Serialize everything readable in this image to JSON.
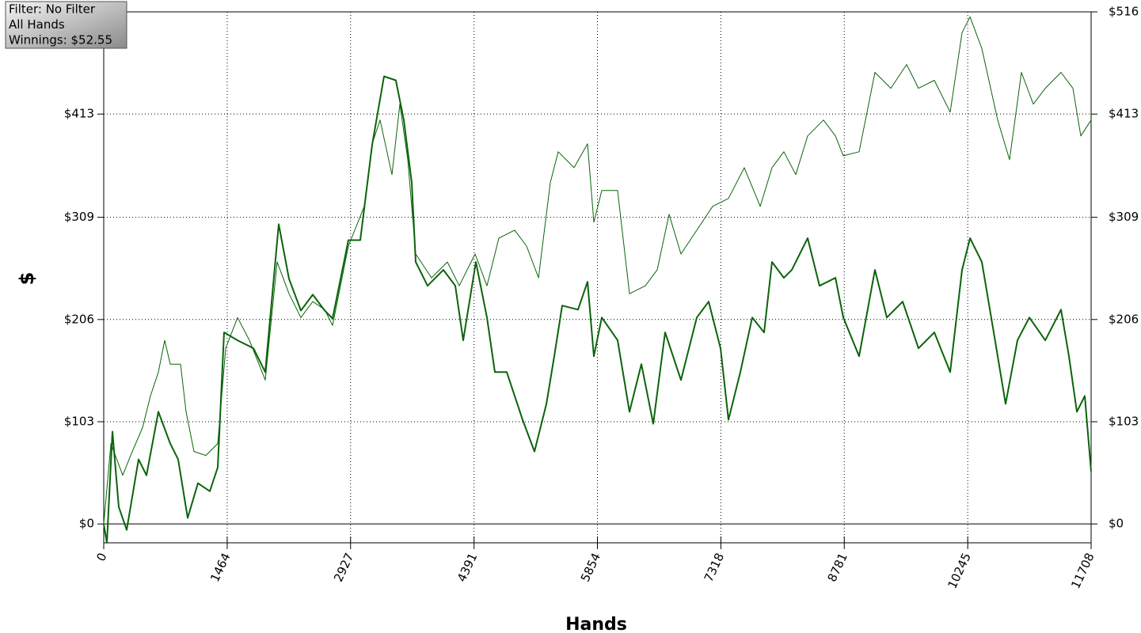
{
  "chart_data": {
    "type": "line",
    "xlabel": "Hands",
    "ylabel": "$",
    "annotations": [
      "Filter: No Filter",
      "All Hands",
      "Winnings: $52.55"
    ],
    "xlim": [
      0,
      11708
    ],
    "xticks": [
      0,
      1464,
      2927,
      4391,
      5854,
      7318,
      8781,
      10245,
      11708
    ],
    "ylim": [
      -19,
      516
    ],
    "yticks": [
      {
        "value": 0,
        "label": "$0"
      },
      {
        "value": 103,
        "label": "$103"
      },
      {
        "value": 206,
        "label": "$206"
      },
      {
        "value": 309,
        "label": "$309"
      },
      {
        "value": 413,
        "label": "$413"
      },
      {
        "value": 516,
        "label": "$516"
      }
    ],
    "y2lim": [
      -19,
      516
    ],
    "y2ticks": [
      {
        "value": 0,
        "label": "$0"
      },
      {
        "value": 103,
        "label": "$103"
      },
      {
        "value": 206,
        "label": "$206"
      },
      {
        "value": 309,
        "label": "$309"
      },
      {
        "value": 413,
        "label": "$413"
      },
      {
        "value": 516,
        "label": "$516"
      }
    ],
    "grid": true,
    "series": [
      {
        "color": "#0b640b",
        "line_width": 2,
        "x": [
          0,
          38,
          103,
          178,
          272,
          413,
          507,
          648,
          789,
          883,
          995,
          1117,
          1258,
          1352,
          1427,
          1587,
          1775,
          1915,
          2075,
          2197,
          2338,
          2479,
          2620,
          2713,
          2901,
          3042,
          3183,
          3324,
          3464,
          3558,
          3652,
          3699,
          3840,
          4028,
          4169,
          4263,
          4413,
          4544,
          4638,
          4779,
          4967,
          5108,
          5249,
          5342,
          5436,
          5624,
          5737,
          5812,
          5906,
          6093,
          6234,
          6375,
          6516,
          6657,
          6845,
          7032,
          7173,
          7314,
          7408,
          7549,
          7690,
          7830,
          7924,
          8065,
          8159,
          8347,
          8488,
          8676,
          8769,
          8957,
          9145,
          9286,
          9473,
          9661,
          9849,
          10037,
          10178,
          10272,
          10412,
          10553,
          10694,
          10835,
          10976,
          11164,
          11351,
          11445,
          11539,
          11633,
          11708
        ],
        "values": [
          0,
          -19,
          93,
          17,
          -6,
          65,
          49,
          113,
          81,
          65,
          6,
          41,
          33,
          57,
          193,
          185,
          177,
          153,
          302,
          247,
          215,
          231,
          215,
          207,
          286,
          286,
          382,
          451,
          447,
          407,
          344,
          264,
          240,
          256,
          240,
          185,
          264,
          208,
          153,
          153,
          105,
          73,
          121,
          169,
          220,
          216,
          244,
          169,
          208,
          185,
          113,
          161,
          101,
          193,
          145,
          208,
          224,
          177,
          105,
          153,
          208,
          193,
          264,
          248,
          256,
          288,
          240,
          248,
          208,
          169,
          256,
          208,
          224,
          177,
          193,
          153,
          256,
          288,
          264,
          193,
          121,
          185,
          208,
          185,
          216,
          169,
          113,
          129,
          53
        ]
      },
      {
        "color": "#0b640b",
        "line_width": 1,
        "x": [
          0,
          85,
          225,
          319,
          460,
          554,
          648,
          723,
          789,
          911,
          976,
          1070,
          1211,
          1352,
          1446,
          1587,
          1728,
          1915,
          2056,
          2197,
          2338,
          2479,
          2620,
          2713,
          2901,
          3089,
          3183,
          3277,
          3418,
          3511,
          3605,
          3699,
          3887,
          4075,
          4216,
          4403,
          4544,
          4685,
          4873,
          5014,
          5155,
          5295,
          5389,
          5577,
          5737,
          5812,
          5906,
          6093,
          6234,
          6422,
          6563,
          6704,
          6845,
          7032,
          7220,
          7408,
          7596,
          7784,
          7924,
          8065,
          8206,
          8347,
          8535,
          8676,
          8769,
          8957,
          9145,
          9333,
          9520,
          9661,
          9849,
          10037,
          10178,
          10272,
          10412,
          10600,
          10741,
          10882,
          11023,
          11164,
          11351,
          11492,
          11586,
          11708
        ],
        "values": [
          0,
          81,
          49,
          69,
          97,
          129,
          153,
          185,
          161,
          161,
          113,
          73,
          69,
          81,
          177,
          208,
          185,
          145,
          264,
          232,
          208,
          224,
          216,
          200,
          280,
          320,
          383,
          407,
          352,
          423,
          367,
          272,
          248,
          264,
          240,
          272,
          240,
          288,
          296,
          280,
          248,
          344,
          375,
          359,
          383,
          304,
          336,
          336,
          232,
          240,
          256,
          312,
          272,
          296,
          320,
          328,
          359,
          320,
          359,
          375,
          352,
          391,
          407,
          391,
          371,
          375,
          455,
          439,
          463,
          439,
          447,
          415,
          495,
          511,
          479,
          407,
          367,
          455,
          423,
          439,
          455,
          439,
          391,
          407
        ]
      }
    ]
  }
}
